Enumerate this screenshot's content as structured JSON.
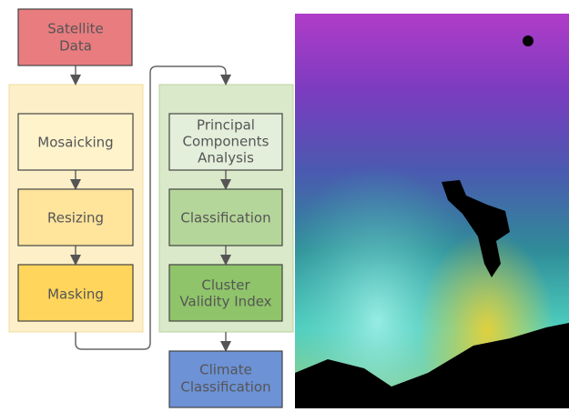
{
  "nodes": [
    {
      "lines": [
        "Satellite",
        "Data"
      ]
    },
    {
      "lines": [
        "Mosaicking"
      ]
    },
    {
      "lines": [
        "Resizing"
      ]
    },
    {
      "lines": [
        "Masking"
      ]
    },
    {
      "lines": [
        "Principal",
        "Components",
        "Analysis"
      ]
    },
    {
      "lines": [
        "Classification"
      ]
    },
    {
      "lines": [
        "Cluster",
        "Validity Index"
      ]
    },
    {
      "lines": [
        "Climate",
        "Classification"
      ]
    }
  ]
}
